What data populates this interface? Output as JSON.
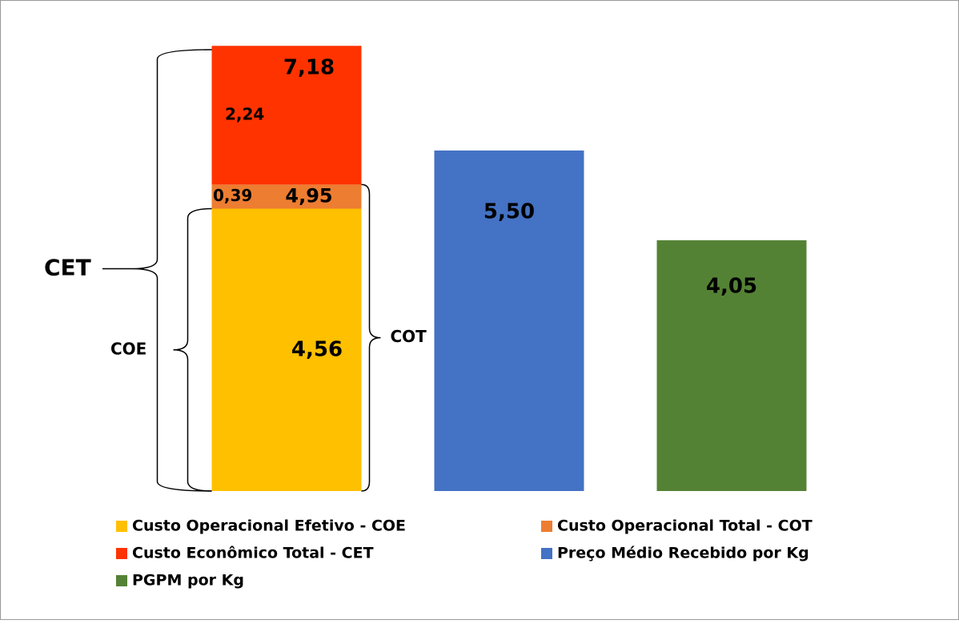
{
  "chart_data": {
    "type": "stacked_bar",
    "categories": [
      null,
      null,
      null
    ],
    "series": [
      {
        "name": "Custo Operacional Efetivo - COE",
        "color": "#ffc000",
        "values": [
          4.56,
          null,
          null
        ],
        "value_labels": [
          "4,56",
          null,
          null
        ]
      },
      {
        "name": "Custo Operacional Total - COT",
        "color": "#ed7d31",
        "values": [
          0.39,
          null,
          null
        ],
        "value_labels": [
          "0,39",
          null,
          null
        ]
      },
      {
        "name": "Custo Econômico Total - CET",
        "color": "#ff3300",
        "values": [
          2.24,
          null,
          null
        ],
        "value_labels": [
          "2,24",
          null,
          null
        ]
      },
      {
        "name": "Preço Médio Recebido por Kg",
        "color": "#4472c4",
        "values": [
          null,
          5.5,
          null
        ],
        "value_labels": [
          null,
          "5,50",
          null
        ]
      },
      {
        "name": "PGPM por Kg",
        "color": "#548235",
        "values": [
          null,
          null,
          4.05
        ],
        "value_labels": [
          null,
          null,
          "4,05"
        ]
      }
    ],
    "totals": {
      "values": [
        4.95,
        7.18
      ],
      "labels": [
        "4,95",
        "7,18"
      ]
    },
    "annotations": {
      "cet": "CET",
      "coe": "COE",
      "cot": "COT"
    },
    "ylim": [
      0,
      7.18
    ]
  }
}
